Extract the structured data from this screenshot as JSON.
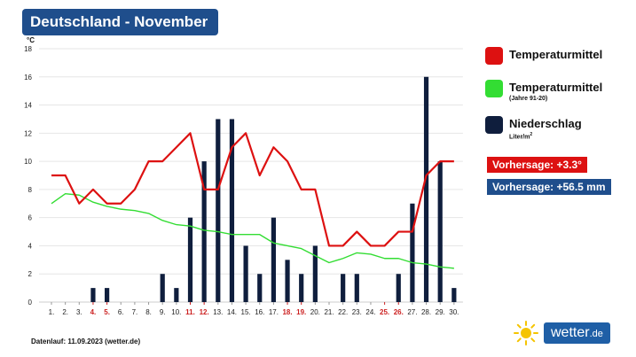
{
  "header": {
    "title": "Deutschland - November"
  },
  "colors": {
    "header_bg": "#1f4e8c",
    "temp_line": "#dd1111",
    "avg_line": "#33dd33",
    "bars": "#0f1e3d",
    "weekend": "#cc2222",
    "grid": "#e6e6e6",
    "brand_box": "#1f5fa6",
    "sun": "#f5c400"
  },
  "legend": {
    "temp": {
      "label": "Temperaturmittel"
    },
    "avg": {
      "label": "Temperaturmittel",
      "sublabel": "(Jahre 91-20)"
    },
    "precip": {
      "label": "Niederschlag",
      "sublabel": "Liter/m",
      "sublabel_sup": "2"
    }
  },
  "forecast": {
    "temp_label": "Vorhersage: +3.3°",
    "precip_label": "Vorhersage: +56.5 mm"
  },
  "footer": {
    "text": "Datenlauf: 11.09.2023 (wetter.de)"
  },
  "brand": {
    "name": "wetter",
    "suffix": ".de",
    "icon": "sun-icon"
  },
  "chart_data": {
    "type": "bar+line",
    "title": "Deutschland - November",
    "ylabel": "°C",
    "ylim": [
      0,
      18
    ],
    "yticks": [
      0,
      2,
      4,
      6,
      8,
      10,
      12,
      14,
      16,
      18
    ],
    "grid": true,
    "legend_position": "right",
    "categories": [
      "1.",
      "2.",
      "3.",
      "4.",
      "5.",
      "6.",
      "7.",
      "8.",
      "9.",
      "10.",
      "11.",
      "12.",
      "13.",
      "14.",
      "15.",
      "16.",
      "17.",
      "18.",
      "19.",
      "20.",
      "21.",
      "22.",
      "23.",
      "24.",
      "25.",
      "26.",
      "27.",
      "28.",
      "29.",
      "30."
    ],
    "weekend_days": [
      4,
      5,
      11,
      12,
      18,
      19,
      25,
      26
    ],
    "series": [
      {
        "name": "Temperaturmittel",
        "type": "line",
        "values": [
          9,
          9,
          7,
          8,
          7,
          7,
          8,
          10,
          10,
          11,
          12,
          8,
          8,
          11,
          12,
          9,
          11,
          10,
          8,
          8,
          4,
          4,
          5,
          4,
          4,
          5,
          5,
          9,
          10,
          10
        ]
      },
      {
        "name": "Temperaturmittel (Jahre 91-20)",
        "type": "line",
        "values": [
          7.0,
          7.7,
          7.6,
          7.1,
          6.8,
          6.6,
          6.5,
          6.3,
          5.8,
          5.5,
          5.4,
          5.1,
          5.0,
          4.8,
          4.8,
          4.8,
          4.2,
          4.0,
          3.8,
          3.3,
          2.8,
          3.1,
          3.5,
          3.4,
          3.1,
          3.1,
          2.8,
          2.7,
          2.5,
          2.4
        ]
      },
      {
        "name": "Niederschlag",
        "type": "bar",
        "unit": "Liter/m²",
        "values": [
          0,
          0,
          0,
          1,
          1,
          0,
          0,
          0,
          2,
          1,
          6,
          10,
          13,
          13,
          4,
          2,
          6,
          3,
          2,
          4,
          0,
          2,
          2,
          0,
          0,
          2,
          7,
          16,
          10,
          1
        ]
      }
    ]
  }
}
